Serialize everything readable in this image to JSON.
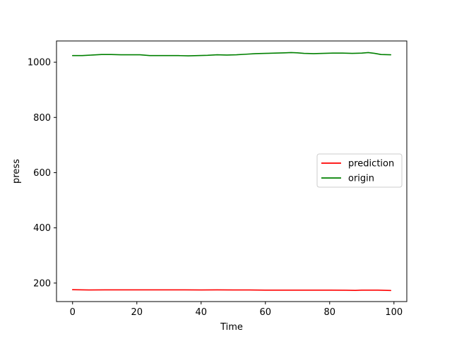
{
  "chart_data": {
    "type": "line",
    "title": "",
    "xlabel": "Time",
    "ylabel": "press",
    "xlim": [
      -5,
      104
    ],
    "ylim": [
      133,
      1077
    ],
    "xticks": [
      0,
      20,
      40,
      60,
      80,
      100
    ],
    "yticks": [
      200,
      400,
      600,
      800,
      1000
    ],
    "grid": false,
    "legend": "center-right",
    "series": [
      {
        "name": "prediction",
        "color": "#ff0000",
        "x": [
          0,
          5,
          10,
          15,
          20,
          25,
          30,
          35,
          40,
          45,
          50,
          55,
          60,
          65,
          70,
          75,
          80,
          85,
          88,
          90,
          95,
          99
        ],
        "values": [
          176,
          175,
          175.5,
          175.5,
          175.5,
          175.5,
          175.5,
          175.5,
          175,
          175.5,
          175,
          175,
          174.5,
          174.5,
          174.5,
          174.5,
          174.5,
          174,
          173.5,
          174.5,
          174.5,
          173
        ]
      },
      {
        "name": "origin",
        "color": "#008000",
        "x": [
          0,
          3,
          6,
          9,
          12,
          15,
          18,
          21,
          24,
          27,
          30,
          33,
          36,
          39,
          42,
          45,
          48,
          51,
          54,
          57,
          60,
          63,
          66,
          68,
          70,
          72,
          75,
          78,
          81,
          84,
          87,
          90,
          92,
          94,
          96,
          99
        ],
        "values": [
          1024,
          1024,
          1026,
          1028,
          1028,
          1027,
          1027,
          1027,
          1024,
          1024,
          1024,
          1024,
          1023,
          1024,
          1025,
          1027,
          1026,
          1027,
          1029,
          1031,
          1032,
          1033,
          1034,
          1035,
          1034,
          1032,
          1031,
          1032,
          1033,
          1033,
          1032,
          1033,
          1035,
          1032,
          1028,
          1027
        ]
      }
    ]
  }
}
